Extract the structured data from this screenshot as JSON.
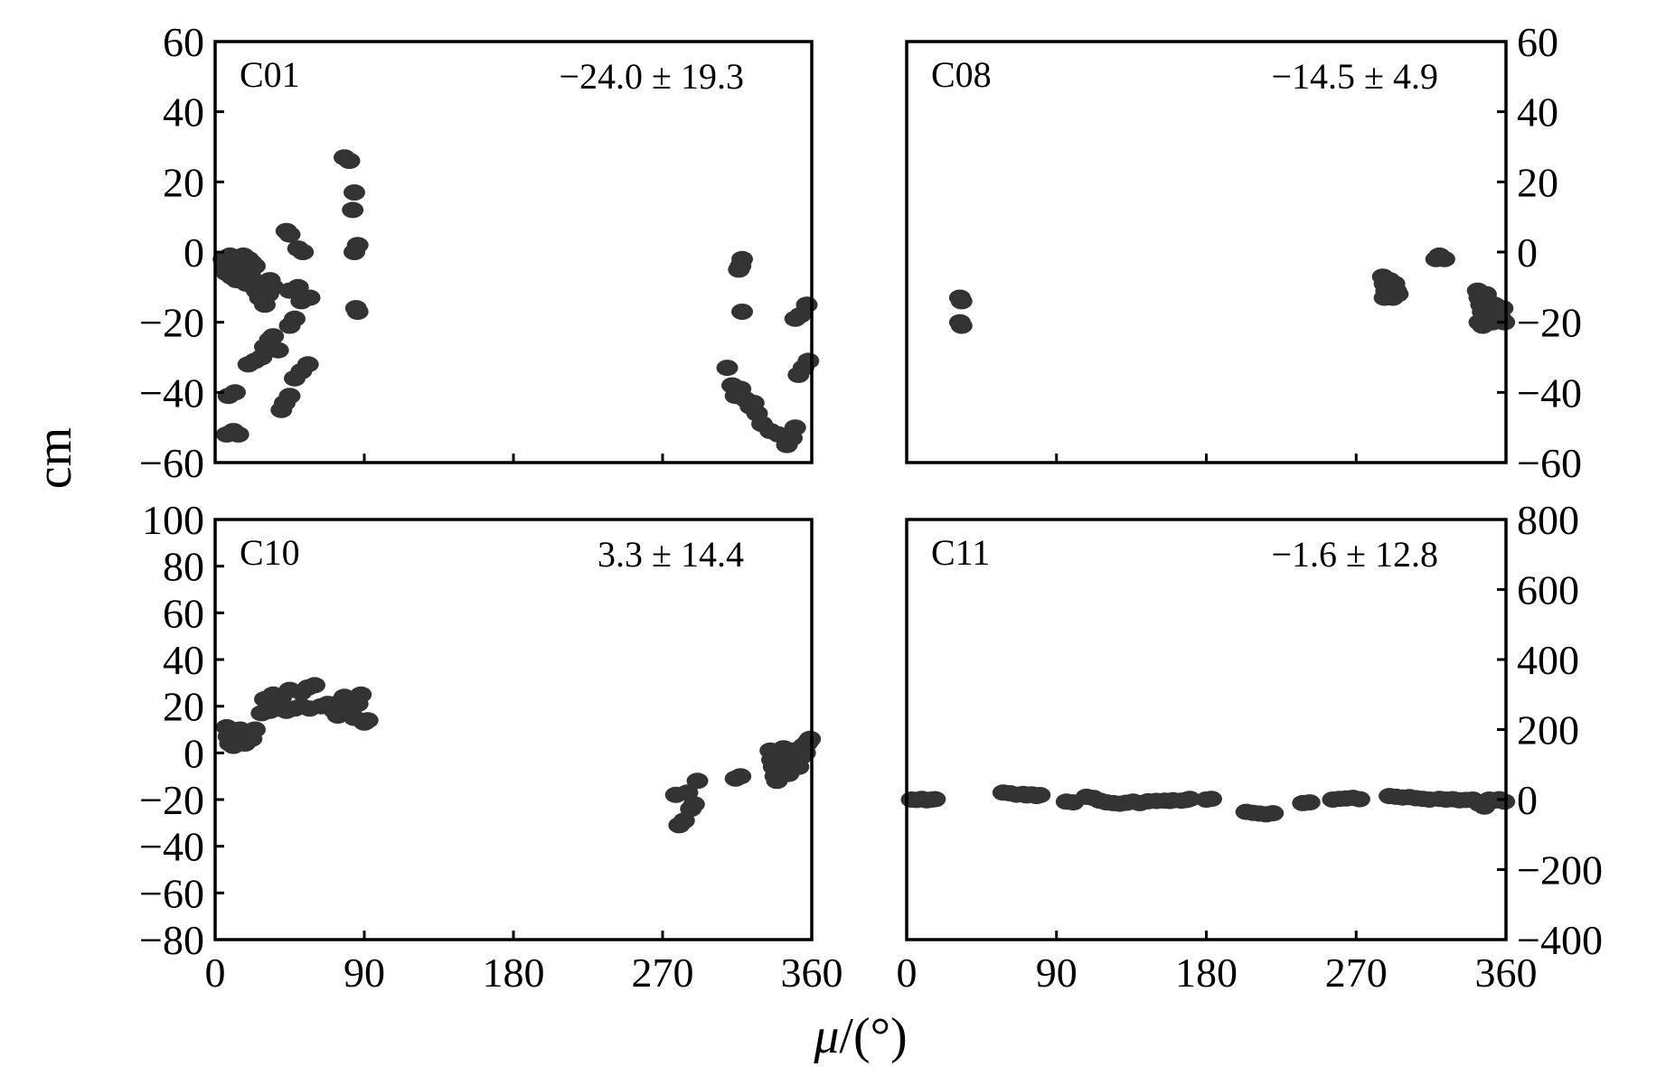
{
  "figure": {
    "ylabel": "cm",
    "xlabel_symbol": "μ",
    "xlabel_unit": "/(°)"
  },
  "chart_data": [
    {
      "type": "scatter",
      "panel": "C01",
      "annotation": "−24.0 ± 19.3",
      "xlim": [
        0,
        360
      ],
      "ylim": [
        -60,
        60
      ],
      "xticks": [
        0,
        90,
        180,
        270,
        360
      ],
      "yticks": [
        60,
        40,
        20,
        0,
        -20,
        -40,
        -60
      ],
      "ytick_labels": [
        "60",
        "40",
        "20",
        "0",
        "−20",
        "−40",
        "−60"
      ],
      "ytick_side": "left",
      "show_xtick_labels": false,
      "grid": false,
      "marker_color": "#333333",
      "points": [
        [
          5,
          -2
        ],
        [
          6,
          -4
        ],
        [
          7,
          -6
        ],
        [
          8,
          -3
        ],
        [
          9,
          -1
        ],
        [
          10,
          -7
        ],
        [
          11,
          -5
        ],
        [
          12,
          -2
        ],
        [
          13,
          -8
        ],
        [
          14,
          -4
        ],
        [
          15,
          -3
        ],
        [
          16,
          -6
        ],
        [
          17,
          -1
        ],
        [
          18,
          -5
        ],
        [
          19,
          -9
        ],
        [
          20,
          -2
        ],
        [
          21,
          -6
        ],
        [
          22,
          -3
        ],
        [
          23,
          -8
        ],
        [
          24,
          -4
        ],
        [
          25,
          -11
        ],
        [
          27,
          -13
        ],
        [
          30,
          -15
        ],
        [
          32,
          -12
        ],
        [
          35,
          -10
        ],
        [
          28,
          -9
        ],
        [
          33,
          -8
        ],
        [
          45,
          -11
        ],
        [
          50,
          -10
        ],
        [
          52,
          -14
        ],
        [
          57,
          -13
        ],
        [
          43,
          6
        ],
        [
          45,
          5
        ],
        [
          50,
          1
        ],
        [
          53,
          0
        ],
        [
          8,
          -41
        ],
        [
          12,
          -40
        ],
        [
          7,
          -52
        ],
        [
          11,
          -51
        ],
        [
          14,
          -52
        ],
        [
          20,
          -32
        ],
        [
          24,
          -31
        ],
        [
          28,
          -30
        ],
        [
          30,
          -27
        ],
        [
          33,
          -25
        ],
        [
          35,
          -24
        ],
        [
          38,
          -28
        ],
        [
          45,
          -21
        ],
        [
          48,
          -19
        ],
        [
          40,
          -45
        ],
        [
          42,
          -43
        ],
        [
          45,
          -41
        ],
        [
          48,
          -36
        ],
        [
          52,
          -34
        ],
        [
          56,
          -32
        ],
        [
          78,
          27
        ],
        [
          81,
          26
        ],
        [
          84,
          17
        ],
        [
          83,
          12
        ],
        [
          86,
          2
        ],
        [
          84,
          0
        ],
        [
          85,
          -16
        ],
        [
          86,
          -17
        ],
        [
          317,
          -4
        ],
        [
          318,
          -2
        ],
        [
          316,
          -5
        ],
        [
          318,
          -17
        ],
        [
          309,
          -33
        ],
        [
          312,
          -38
        ],
        [
          314,
          -41
        ],
        [
          317,
          -39
        ],
        [
          320,
          -42
        ],
        [
          323,
          -44
        ],
        [
          325,
          -43
        ],
        [
          327,
          -46
        ],
        [
          330,
          -49
        ],
        [
          335,
          -51
        ],
        [
          340,
          -52
        ],
        [
          345,
          -55
        ],
        [
          348,
          -53
        ],
        [
          350,
          -50
        ],
        [
          350,
          -19
        ],
        [
          353,
          -18
        ],
        [
          357,
          -15
        ],
        [
          358,
          -31
        ],
        [
          355,
          -33
        ],
        [
          352,
          -35
        ]
      ]
    },
    {
      "type": "scatter",
      "panel": "C08",
      "annotation": "−14.5 ± 4.9",
      "xlim": [
        0,
        360
      ],
      "ylim": [
        -60,
        60
      ],
      "xticks": [
        0,
        90,
        180,
        270,
        360
      ],
      "yticks": [
        60,
        40,
        20,
        0,
        -20,
        -40,
        -60
      ],
      "ytick_labels": [
        "60",
        "40",
        "20",
        "0",
        "−20",
        "−40",
        "−60"
      ],
      "ytick_side": "right",
      "show_xtick_labels": false,
      "grid": false,
      "marker_color": "#333333",
      "points": [
        [
          32,
          -13
        ],
        [
          33,
          -14
        ],
        [
          32,
          -20
        ],
        [
          33,
          -21
        ],
        [
          286,
          -7
        ],
        [
          287,
          -9
        ],
        [
          288,
          -11
        ],
        [
          289,
          -12
        ],
        [
          290,
          -8
        ],
        [
          291,
          -10
        ],
        [
          292,
          -13
        ],
        [
          293,
          -9
        ],
        [
          294,
          -11
        ],
        [
          295,
          -12
        ],
        [
          287,
          -13
        ],
        [
          318,
          -2
        ],
        [
          320,
          -1
        ],
        [
          323,
          -2
        ],
        [
          343,
          -11
        ],
        [
          344,
          -13
        ],
        [
          345,
          -15
        ],
        [
          346,
          -17
        ],
        [
          347,
          -19
        ],
        [
          348,
          -12
        ],
        [
          349,
          -14
        ],
        [
          350,
          -16
        ],
        [
          351,
          -18
        ],
        [
          352,
          -20
        ],
        [
          353,
          -15
        ],
        [
          355,
          -17
        ],
        [
          357,
          -19
        ],
        [
          358,
          -16
        ],
        [
          359,
          -20
        ],
        [
          344,
          -20
        ],
        [
          346,
          -21
        ],
        [
          348,
          -20
        ]
      ]
    },
    {
      "type": "scatter",
      "panel": "C10",
      "annotation": "3.3 ± 14.4",
      "xlim": [
        0,
        360
      ],
      "ylim": [
        -80,
        100
      ],
      "xticks": [
        0,
        90,
        180,
        270,
        360
      ],
      "yticks": [
        100,
        80,
        60,
        40,
        20,
        0,
        -20,
        -40,
        -60,
        -80
      ],
      "ytick_labels": [
        "100",
        "80",
        "60",
        "40",
        "20",
        "0",
        "−20",
        "−40",
        "−60",
        "−80"
      ],
      "ytick_side": "left",
      "show_xtick_labels": true,
      "grid": false,
      "marker_color": "#333333",
      "points": [
        [
          7,
          11
        ],
        [
          8,
          7
        ],
        [
          9,
          4
        ],
        [
          10,
          9
        ],
        [
          11,
          3
        ],
        [
          12,
          6
        ],
        [
          13,
          8
        ],
        [
          14,
          5
        ],
        [
          15,
          10
        ],
        [
          16,
          7
        ],
        [
          18,
          4
        ],
        [
          20,
          9
        ],
        [
          22,
          6
        ],
        [
          24,
          10
        ],
        [
          30,
          23
        ],
        [
          35,
          25
        ],
        [
          40,
          24
        ],
        [
          45,
          27
        ],
        [
          28,
          17
        ],
        [
          33,
          18
        ],
        [
          38,
          19
        ],
        [
          43,
          18
        ],
        [
          48,
          19
        ],
        [
          52,
          20
        ],
        [
          57,
          19
        ],
        [
          52,
          26
        ],
        [
          56,
          28
        ],
        [
          60,
          29
        ],
        [
          64,
          20
        ],
        [
          68,
          21
        ],
        [
          72,
          18
        ],
        [
          74,
          16
        ],
        [
          76,
          22
        ],
        [
          78,
          24
        ],
        [
          80,
          17
        ],
        [
          82,
          19
        ],
        [
          84,
          15
        ],
        [
          86,
          21
        ],
        [
          88,
          25
        ],
        [
          90,
          13
        ],
        [
          92,
          14
        ],
        [
          278,
          -18
        ],
        [
          280,
          -31
        ],
        [
          283,
          -29
        ],
        [
          285,
          -17
        ],
        [
          287,
          -24
        ],
        [
          289,
          -22
        ],
        [
          291,
          -12
        ],
        [
          314,
          -11
        ],
        [
          317,
          -10
        ],
        [
          335,
          1
        ],
        [
          336,
          -3
        ],
        [
          337,
          -6
        ],
        [
          338,
          -10
        ],
        [
          339,
          -12
        ],
        [
          340,
          -8
        ],
        [
          341,
          -4
        ],
        [
          342,
          0
        ],
        [
          343,
          2
        ],
        [
          344,
          -2
        ],
        [
          345,
          -5
        ],
        [
          346,
          -9
        ],
        [
          347,
          -7
        ],
        [
          348,
          -3
        ],
        [
          349,
          1
        ],
        [
          350,
          -1
        ],
        [
          351,
          -4
        ],
        [
          352,
          -6
        ],
        [
          353,
          -2
        ],
        [
          354,
          1
        ],
        [
          355,
          3
        ],
        [
          356,
          0
        ],
        [
          357,
          4
        ],
        [
          358,
          5
        ],
        [
          359,
          6
        ]
      ]
    },
    {
      "type": "scatter",
      "panel": "C11",
      "annotation": "−1.6 ± 12.8",
      "xlim": [
        0,
        360
      ],
      "ylim": [
        -400,
        800
      ],
      "xticks": [
        0,
        90,
        180,
        270,
        360
      ],
      "yticks": [
        800,
        600,
        400,
        200,
        0,
        -200,
        -400
      ],
      "ytick_labels": [
        "800",
        "600",
        "400",
        "200",
        "0",
        "−200",
        "−400"
      ],
      "ytick_side": "right",
      "show_xtick_labels": true,
      "grid": false,
      "marker_color": "#333333",
      "points": [
        [
          3,
          0
        ],
        [
          6,
          -1
        ],
        [
          9,
          2
        ],
        [
          12,
          -2
        ],
        [
          15,
          0
        ],
        [
          17,
          1
        ],
        [
          58,
          20
        ],
        [
          62,
          18
        ],
        [
          66,
          14
        ],
        [
          70,
          16
        ],
        [
          72,
          12
        ],
        [
          75,
          15
        ],
        [
          78,
          10
        ],
        [
          80,
          13
        ],
        [
          96,
          -6
        ],
        [
          100,
          -8
        ],
        [
          108,
          8
        ],
        [
          112,
          5
        ],
        [
          116,
          -3
        ],
        [
          120,
          -8
        ],
        [
          124,
          -10
        ],
        [
          128,
          -12
        ],
        [
          132,
          -9
        ],
        [
          136,
          -6
        ],
        [
          140,
          -10
        ],
        [
          145,
          -5
        ],
        [
          150,
          -4
        ],
        [
          155,
          -3
        ],
        [
          158,
          -4
        ],
        [
          160,
          -2
        ],
        [
          165,
          -3
        ],
        [
          168,
          -1
        ],
        [
          170,
          2
        ],
        [
          180,
          0
        ],
        [
          183,
          2
        ],
        [
          204,
          -35
        ],
        [
          208,
          -38
        ],
        [
          212,
          -40
        ],
        [
          216,
          -42
        ],
        [
          220,
          -39
        ],
        [
          238,
          -10
        ],
        [
          242,
          -8
        ],
        [
          256,
          0
        ],
        [
          260,
          2
        ],
        [
          264,
          3
        ],
        [
          268,
          5
        ],
        [
          272,
          1
        ],
        [
          290,
          10
        ],
        [
          294,
          8
        ],
        [
          298,
          6
        ],
        [
          302,
          7
        ],
        [
          306,
          4
        ],
        [
          310,
          2
        ],
        [
          314,
          0
        ],
        [
          320,
          2
        ],
        [
          324,
          0
        ],
        [
          328,
          1
        ],
        [
          332,
          -2
        ],
        [
          336,
          -1
        ],
        [
          340,
          0
        ],
        [
          344,
          -12
        ],
        [
          347,
          -20
        ],
        [
          350,
          0
        ],
        [
          353,
          -3
        ],
        [
          356,
          1
        ],
        [
          359,
          -6
        ]
      ]
    }
  ]
}
